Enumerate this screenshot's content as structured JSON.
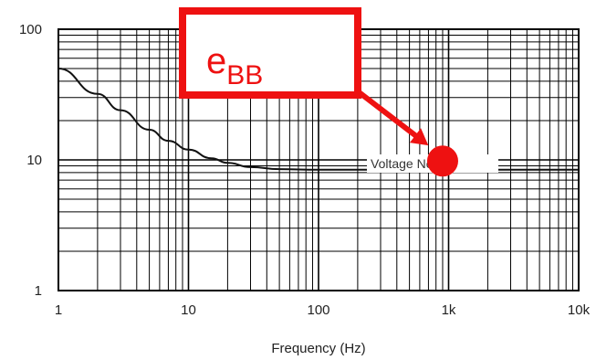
{
  "chart_data": {
    "type": "line",
    "title": "",
    "xlabel": "Frequency (Hz)",
    "ylabel": "",
    "xscale": "log",
    "yscale": "log",
    "xlim": [
      1,
      10000
    ],
    "ylim": [
      1,
      100
    ],
    "grid": true,
    "x_ticks": [
      1,
      10,
      100,
      1000,
      10000
    ],
    "x_tick_labels": [
      "1",
      "10",
      "100",
      "1k",
      "10k"
    ],
    "y_ticks": [
      1,
      10,
      100
    ],
    "y_tick_labels": [
      "1",
      "10",
      "100"
    ],
    "series": [
      {
        "name": "Voltage Noise",
        "color": "#111111",
        "x": [
          1,
          2,
          3,
          5,
          7,
          10,
          15,
          20,
          30,
          50,
          100,
          300,
          1000,
          3000,
          10000
        ],
        "y": [
          50,
          32,
          24,
          17,
          14,
          12,
          10.3,
          9.5,
          8.8,
          8.5,
          8.4,
          8.4,
          8.4,
          8.4,
          8.4
        ]
      }
    ],
    "annotations": {
      "callout": {
        "text_main": "e",
        "text_sub": "BB",
        "color": "#ee1111",
        "point_x": 900,
        "point_y": 9.8
      }
    }
  }
}
